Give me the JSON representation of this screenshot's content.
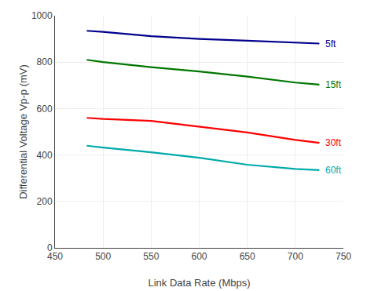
{
  "chart_data": {
    "type": "line",
    "xlabel": "Link Data Rate (Mbps)",
    "ylabel": "Differential Voltage Vp-p (mV)",
    "x": [
      483,
      500,
      550,
      600,
      650,
      700,
      725
    ],
    "series": [
      {
        "name": "5ft",
        "color": "#00008B",
        "values": [
          935,
          930,
          912,
          900,
          892,
          884,
          880
        ]
      },
      {
        "name": "15ft",
        "color": "#007700",
        "values": [
          810,
          800,
          778,
          760,
          738,
          712,
          703
        ]
      },
      {
        "name": "30ft",
        "color": "#FF0000",
        "values": [
          560,
          555,
          547,
          523,
          497,
          465,
          452
        ]
      },
      {
        "name": "60ft",
        "color": "#00AAAA",
        "values": [
          440,
          432,
          412,
          388,
          358,
          340,
          335
        ]
      }
    ],
    "xlim": [
      450,
      750
    ],
    "ylim": [
      0,
      1000
    ],
    "xticks": [
      450,
      500,
      550,
      600,
      650,
      700,
      750
    ],
    "yticks": [
      0,
      200,
      400,
      600,
      800,
      1000
    ],
    "grid": true
  }
}
